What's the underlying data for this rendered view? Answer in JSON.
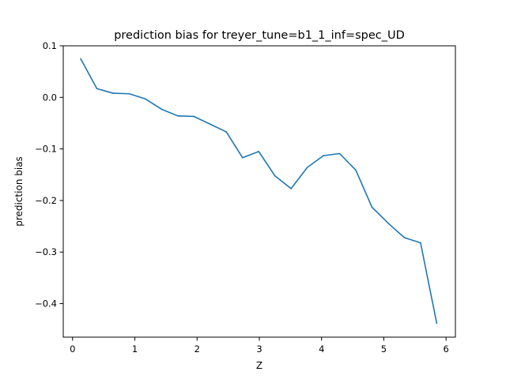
{
  "chart_data": {
    "type": "line",
    "title": "prediction bias for treyer_tune=b1_1_inf=spec_UD",
    "xlabel": "Z",
    "ylabel": "prediction bias",
    "xlim": [
      -0.15,
      6.15
    ],
    "ylim": [
      -0.465,
      0.1
    ],
    "grid": false,
    "line_color": "#1f77b4",
    "x_ticks": [
      {
        "value": 0,
        "label": "0"
      },
      {
        "value": 1,
        "label": "1"
      },
      {
        "value": 2,
        "label": "2"
      },
      {
        "value": 3,
        "label": "3"
      },
      {
        "value": 4,
        "label": "4"
      },
      {
        "value": 5,
        "label": "5"
      },
      {
        "value": 6,
        "label": "6"
      }
    ],
    "y_ticks": [
      {
        "value": 0.1,
        "label": "0.1"
      },
      {
        "value": 0.0,
        "label": "0.0"
      },
      {
        "value": -0.1,
        "label": "−0.1"
      },
      {
        "value": -0.2,
        "label": "−0.2"
      },
      {
        "value": -0.3,
        "label": "−0.3"
      },
      {
        "value": -0.4,
        "label": "−0.4"
      }
    ],
    "series": [
      {
        "x": [
          0.13,
          0.39,
          0.65,
          0.91,
          1.17,
          1.43,
          1.69,
          1.95,
          2.21,
          2.47,
          2.73,
          2.99,
          3.25,
          3.51,
          3.77,
          4.03,
          4.29,
          4.55,
          4.81,
          5.07,
          5.33,
          5.59,
          5.85
        ],
        "y": [
          0.075,
          0.017,
          0.008,
          0.007,
          -0.003,
          -0.023,
          -0.036,
          -0.037,
          -0.052,
          -0.067,
          -0.117,
          -0.105,
          -0.152,
          -0.177,
          -0.136,
          -0.113,
          -0.109,
          -0.141,
          -0.213,
          -0.244,
          -0.272,
          -0.282,
          -0.438
        ]
      }
    ]
  }
}
